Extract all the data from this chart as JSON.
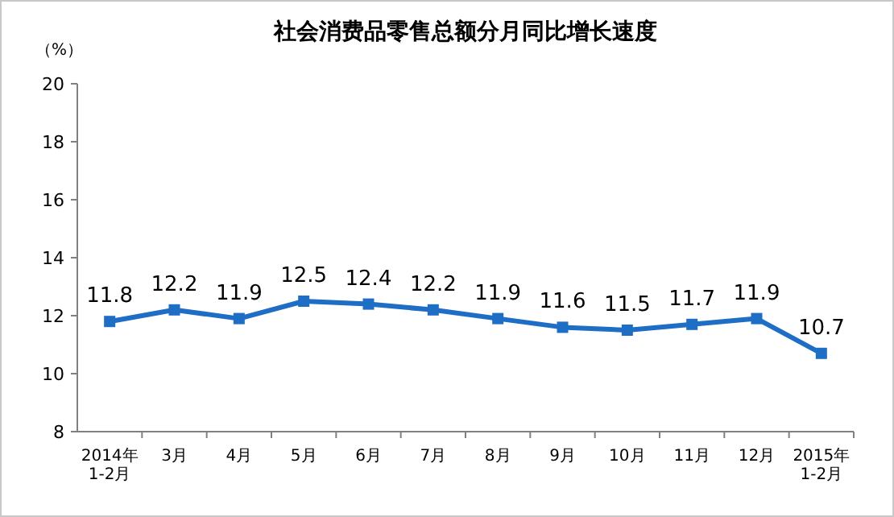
{
  "chart_data": {
    "type": "line",
    "title": "社会消费品零售总额分月同比增长速度",
    "ylabel": "（%）",
    "categories": [
      "2014年\n1-2月",
      "3月",
      "4月",
      "5月",
      "6月",
      "7月",
      "8月",
      "9月",
      "10月",
      "11月",
      "12月",
      "2015年\n1-2月"
    ],
    "series": [
      {
        "color": "#1f6ec6",
        "values": [
          11.8,
          12.2,
          11.9,
          12.5,
          12.4,
          12.2,
          11.9,
          11.6,
          11.5,
          11.7,
          11.9,
          10.7
        ]
      }
    ],
    "ylim": [
      8,
      20
    ],
    "yticks": [
      8,
      10,
      12,
      14,
      16,
      18,
      20
    ],
    "marker": "square",
    "line_style": "solid",
    "data_labels": true,
    "grid": false
  }
}
